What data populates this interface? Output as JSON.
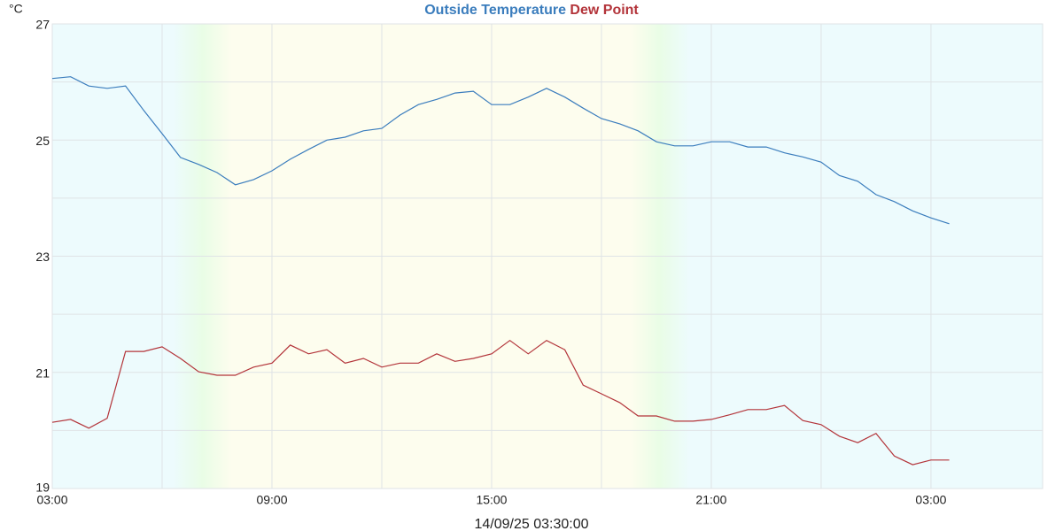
{
  "chart_data": {
    "type": "line",
    "y_label": "°C",
    "x_label": "14/09/25 03:30:00",
    "x": [
      0,
      0.5,
      1,
      1.5,
      2,
      2.5,
      3,
      3.5,
      4,
      4.5,
      5,
      5.5,
      6,
      6.5,
      7,
      7.5,
      8,
      8.5,
      9,
      9.5,
      10,
      10.5,
      11,
      11.5,
      12,
      12.5,
      13,
      13.5,
      14,
      14.5,
      15,
      15.5,
      16,
      16.5,
      17,
      17.5,
      18,
      18.5,
      19,
      19.5,
      20,
      20.5,
      21,
      21.5,
      22,
      22.5,
      23,
      23.5,
      24,
      24.5
    ],
    "series": [
      {
        "name": "Outside Temperature",
        "color": "#3b7dbd",
        "values": [
          26.06,
          26.09,
          25.93,
          25.89,
          25.93,
          25.51,
          25.11,
          24.7,
          24.58,
          24.44,
          24.23,
          24.32,
          24.47,
          24.67,
          24.84,
          25.0,
          25.05,
          25.16,
          25.2,
          25.43,
          25.61,
          25.7,
          25.81,
          25.84,
          25.61,
          25.61,
          25.74,
          25.89,
          25.74,
          25.55,
          25.37,
          25.28,
          25.16,
          24.97,
          24.9,
          24.9,
          24.97,
          24.97,
          24.88,
          24.88,
          24.78,
          24.71,
          24.62,
          24.39,
          24.29,
          24.06,
          23.94,
          23.78,
          23.66,
          23.56
        ]
      },
      {
        "name": "Dew Point",
        "color": "#b3343a",
        "values": [
          20.14,
          20.19,
          20.04,
          20.21,
          21.36,
          21.36,
          21.44,
          21.24,
          21.01,
          20.95,
          20.95,
          21.09,
          21.16,
          21.47,
          21.32,
          21.39,
          21.16,
          21.24,
          21.09,
          21.16,
          21.16,
          21.32,
          21.19,
          21.24,
          21.32,
          21.55,
          21.32,
          21.55,
          21.39,
          20.78,
          20.63,
          20.48,
          20.25,
          20.25,
          20.16,
          20.16,
          20.19,
          20.27,
          20.36,
          20.36,
          20.43,
          20.17,
          20.1,
          19.9,
          19.79,
          19.95,
          19.56,
          19.41,
          19.49,
          19.49
        ]
      }
    ],
    "xlim": [
      0,
      27.05
    ],
    "xticks": [
      {
        "value": 0,
        "label": "03:00"
      },
      {
        "value": 6,
        "label": "09:00"
      },
      {
        "value": 12,
        "label": "15:00"
      },
      {
        "value": 18,
        "label": "21:00"
      },
      {
        "value": 24,
        "label": "03:00"
      }
    ],
    "xminor": [
      3,
      9,
      15,
      21
    ],
    "ylim": [
      19,
      27
    ],
    "yticks": [
      19,
      21,
      23,
      25,
      27
    ],
    "yminor": [
      20,
      22,
      24,
      26
    ],
    "daylight": [
      4.1,
      16.6
    ],
    "grid": true
  }
}
